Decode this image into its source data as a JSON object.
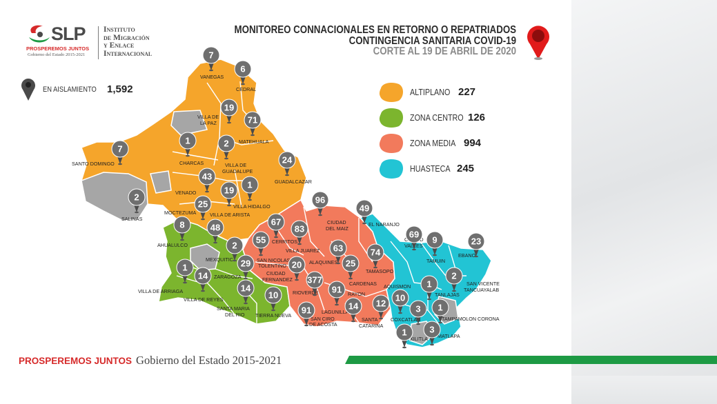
{
  "logo": {
    "brand": "SLP",
    "tagline": "PROSPEREMOS JUNTOS",
    "gov_line": "Gobierno del Estado 2015-2021",
    "institute_lines": [
      "Instituto",
      "de Migración",
      "y Enlace",
      "Internacional"
    ]
  },
  "title": {
    "line1": "MONITOREO CONNACIONALES EN RETORNO O REPATRIADOS",
    "line2": "CONTINGENCIA SANITARIA COVID-19",
    "line3": "CORTE AL 19 DE ABRIL DE 2020"
  },
  "isolation": {
    "label": "EN AISLAMIENTO",
    "value": "1,592"
  },
  "legend": [
    {
      "label": "ALTIPLANO",
      "value": "227",
      "color": "#f5a52b"
    },
    {
      "label": "ZONA CENTRO",
      "value": "126",
      "color": "#7cb52e"
    },
    {
      "label": "ZONA MEDIA",
      "value": "994",
      "color": "#f27a5c"
    },
    {
      "label": "HUASTECA",
      "value": "245",
      "color": "#22c4d4"
    }
  ],
  "colors": {
    "altiplano": "#f5a52b",
    "centro": "#7cb52e",
    "media": "#f27a5c",
    "huasteca": "#22c4d4",
    "none": "#a6a6a6",
    "pin": "#6f6f6f",
    "pin_dark": "#4a4a4a",
    "accent_red": "#d62a2a",
    "accent_green": "#1d9a44"
  },
  "municipalities": [
    {
      "name": "VANEGAS",
      "value": "7"
    },
    {
      "name": "CEDRAL",
      "value": "6"
    },
    {
      "name": "VILLA DE LA PAZ",
      "value": "19"
    },
    {
      "name": "MATEHUALA",
      "value": "71"
    },
    {
      "name": "SANTO DOMINGO",
      "value": "7"
    },
    {
      "name": "CHARCAS",
      "value": "1"
    },
    {
      "name": "VILLA DE GUADALUPE",
      "value": "2"
    },
    {
      "name": "GUADALCAZAR",
      "value": "24"
    },
    {
      "name": "VENADO",
      "value": "43"
    },
    {
      "name": "VILLA HIDALGO",
      "value": "19"
    },
    {
      "name": "VILLA HIDALGO",
      "value": "1"
    },
    {
      "name": "SALINAS",
      "value": "2"
    },
    {
      "name": "MOCTEZUMA",
      "value": "25"
    },
    {
      "name": "VILLA DE ARISTA",
      "value": "48"
    },
    {
      "name": "AHUALULCO",
      "value": "8"
    },
    {
      "name": "MEXQUITIC",
      "value": "2"
    },
    {
      "name": "CERRITOS",
      "value": "67"
    },
    {
      "name": "SAN NICOLAS TOLENTINO",
      "value": "55"
    },
    {
      "name": "VILLA JUAREZ",
      "value": "83"
    },
    {
      "name": "CIUDAD DEL MAIZ",
      "value": "96"
    },
    {
      "name": "EL NARANJO",
      "value": "49"
    },
    {
      "name": "VILLA DE ARRIAGA",
      "value": "1"
    },
    {
      "name": "VILLA DE REYES",
      "value": "14"
    },
    {
      "name": "ZARAGOZA",
      "value": "29"
    },
    {
      "name": "SANTA MARIA DEL RIO",
      "value": "14"
    },
    {
      "name": "TIERRA NUEVA",
      "value": "10"
    },
    {
      "name": "CIUDAD FERNANDEZ",
      "value": "20"
    },
    {
      "name": "RIOVERDE",
      "value": "377"
    },
    {
      "name": "ALAQUINES",
      "value": "63"
    },
    {
      "name": "CARDENAS",
      "value": "25"
    },
    {
      "name": "TAMASOPO",
      "value": "74"
    },
    {
      "name": "SAN CIRO DE ACOSTA",
      "value": "91"
    },
    {
      "name": "RAYON",
      "value": "91"
    },
    {
      "name": "LAGUNILLAS",
      "value": "14"
    },
    {
      "name": "SANTA CATARINA",
      "value": "12"
    },
    {
      "name": "CIUDAD VALLES",
      "value": "69"
    },
    {
      "name": "TAMUIN",
      "value": "9"
    },
    {
      "name": "EBANO",
      "value": "23"
    },
    {
      "name": "SAN VICENTE TANCUAYALAB",
      "value": "2"
    },
    {
      "name": "AQUISMON",
      "value": "10"
    },
    {
      "name": "TANLAJAS",
      "value": "1"
    },
    {
      "name": "COXCATLAN",
      "value": "3"
    },
    {
      "name": "TAMPAMOLON CORONA",
      "value": "1"
    },
    {
      "name": "XILITLA",
      "value": "1"
    },
    {
      "name": "MATLAPA",
      "value": "3"
    }
  ],
  "map_text": {
    "vanegas": "VANEGAS",
    "cedral": "CEDRAL",
    "villa_de_la_paz": "VILLA DE",
    "villa_de_la_paz2": "LA PAZ",
    "matehuala": "MATEHUALA",
    "santo_domingo": "SANTO DOMINGO",
    "charcas": "CHARCAS",
    "villa_de_guadalupe": "VILLA DE",
    "villa_de_guadalupe2": "GUADALUPE",
    "guadalcazar": "GUADALCAZAR",
    "venado": "VENADO",
    "villa_hidalgo": "VILLA HIDALGO",
    "salinas": "SALINAS",
    "moctezuma": "MOCTEZUMA",
    "villa_de_arista": "VILLA DE ARISTA",
    "ahualulco": "AHUALULCO",
    "mexquitic": "MEXQUITIC",
    "cerritos": "CERRITOS",
    "san_nicolas": "SAN NICOLAS",
    "tolentino": "TOLENTINO",
    "villa_juarez": "VILLA JUAREZ",
    "ciudad_del_maiz": "CIUDAD",
    "ciudad_del_maiz2": "DEL MAIZ",
    "el_naranjo": "EL NARANJO",
    "villa_de_arriaga": "VILLA DE ARRIAGA",
    "villa_de_reyes": "VILLA DE REYES",
    "zaragoza": "ZARAGOZA",
    "santa_maria": "SANTA MARIA",
    "del_rio": "DEL RIO",
    "tierra_nueva": "TIERRA NUEVA",
    "ciudad_fernandez": "CIUDAD",
    "ciudad_fernandez2": "FERNANDEZ",
    "rioverde": "RIOVERDE",
    "alaquines": "ALAQUINES",
    "cardenas": "CARDENAS",
    "tamasopo": "TAMASOPO",
    "san_ciro": "SAN CIRO",
    "de_acosta": "DE ACOSTA",
    "rayon": "RAYON",
    "lagunillas": "LAGUNILLAS",
    "santa_catarina": "SANTA",
    "santa_catarina2": "CATARINA",
    "ciudad_valles": "CIUDAD",
    "ciudad_valles2": "VALLES",
    "tamuin": "TAMUIN",
    "ebano": "EBANO",
    "san_vicente": "SAN VICENTE",
    "tancuayalab": "TANCUAYALAB",
    "aquismon": "AQUISMON",
    "tanlajas": "TANLAJAS",
    "coxcatlan": "COXCATLAN",
    "tampamolon": "TAMPAMOLON CORONA",
    "xilitla": "XILITLA",
    "matlapa": "MATLAPA"
  },
  "footer": {
    "bold": "PROSPEREMOS JUNTOS",
    "gov": "Gobierno del Estado 2015-2021"
  }
}
